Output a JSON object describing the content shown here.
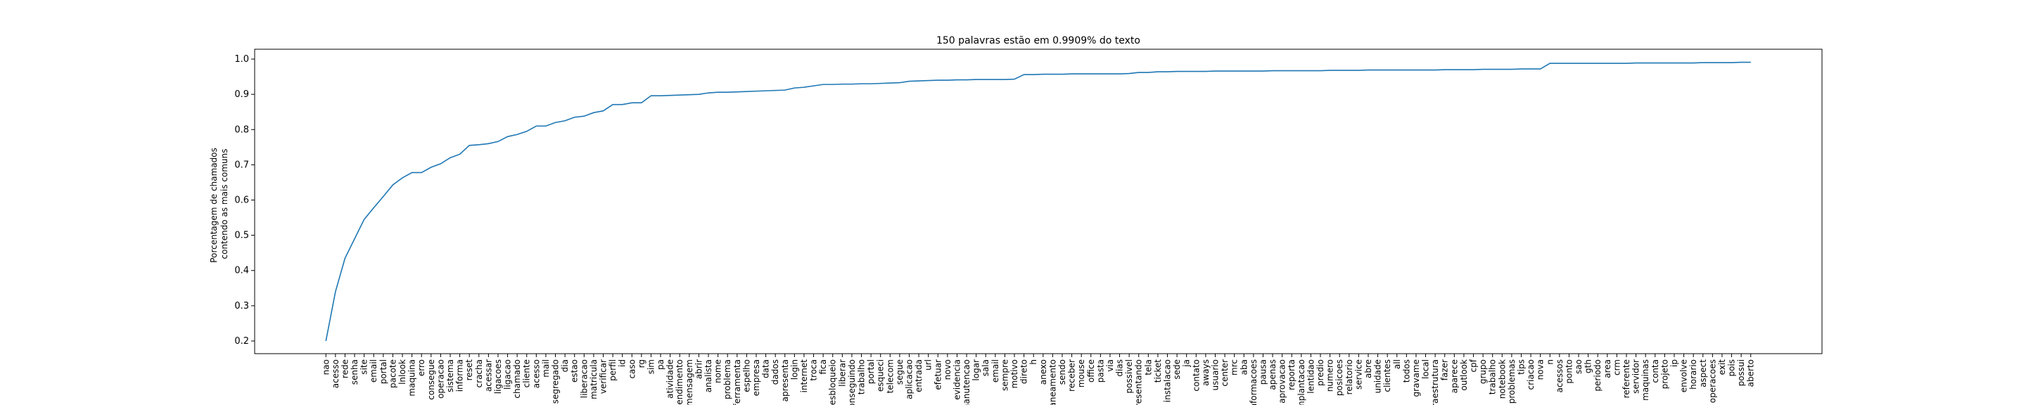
{
  "chart_data": {
    "type": "line",
    "title": "150 palavras estão em 0.9909% do texto",
    "ylabel": [
      "Porcentagem de chamados",
      "contendo as mais comuns"
    ],
    "color": "#1f77b4",
    "categories": [
      "nao",
      "acesso",
      "rede",
      "senha",
      "site",
      "email",
      "portal",
      "pacote",
      "lnlook",
      "maquina",
      "erro",
      "consegue",
      "operacao",
      "sistema",
      "informa",
      "reset",
      "cracha",
      "acessar",
      "ligacoes",
      "ligacao",
      "chamado",
      "cliente",
      "acesso",
      "mail",
      "segregado",
      "dia",
      "estao",
      "liberacao",
      "matricula",
      "verificar",
      "perfil",
      "id",
      "caso",
      "rg",
      "sim",
      "pa",
      "atividade",
      "atendimento",
      "mensagem",
      "abrir",
      "analista",
      "nome",
      "problema",
      "ferramenta",
      "espelho",
      "empresa",
      "data",
      "dados",
      "apresenta",
      "login",
      "internet",
      "troca",
      "fica",
      "desbloqueio",
      "liberar",
      "conseguindo",
      "trabalho",
      "portal",
      "esqueci",
      "telecom",
      "segue",
      "aplicacao",
      "entrada",
      "url",
      "efetuar",
      "novo",
      "evidencia",
      "manutencao",
      "logar",
      "sala",
      "email",
      "sempre",
      "motivo",
      "direto",
      "h",
      "anexo",
      "escaneamento",
      "sendo",
      "receber",
      "mouse",
      "office",
      "pasta",
      "via",
      "dias",
      "possivel",
      "presentando",
      "tela",
      "ticket",
      "instalacao",
      "sede",
      "ja",
      "contato",
      "aways",
      "usuario",
      "center",
      "mrc",
      "aba",
      "informacoes",
      "pausa",
      "apenas",
      "aprovacao",
      "reporta",
      "implantacao",
      "lentidao",
      "predio",
      "numero",
      "posicoes",
      "relatorio",
      "service",
      "abre",
      "unidade",
      "clientes",
      "all",
      "todos",
      "gravame",
      "local",
      "infraestrutura",
      "fazer",
      "aparece",
      "outlook",
      "cpf",
      "grupo",
      "trabalho",
      "notebook",
      "problemas",
      "tips",
      "criacao",
      "nova",
      "n",
      "acessos",
      "ponto",
      "sao",
      "gth",
      "periodo",
      "area",
      "crm",
      "referente",
      "servidor",
      "maquinas",
      "conta",
      "projeto",
      "ip",
      "envolve",
      "horario",
      "aspect",
      "operacoes",
      "exit",
      "pois",
      "possui",
      "aberto"
    ],
    "values": [
      0.2,
      0.34,
      0.435,
      0.49,
      0.545,
      0.578,
      0.61,
      0.643,
      0.663,
      0.678,
      0.678,
      0.693,
      0.703,
      0.72,
      0.73,
      0.755,
      0.757,
      0.76,
      0.766,
      0.78,
      0.786,
      0.795,
      0.81,
      0.81,
      0.82,
      0.825,
      0.835,
      0.838,
      0.848,
      0.853,
      0.871,
      0.871,
      0.876,
      0.876,
      0.896,
      0.896,
      0.897,
      0.898,
      0.899,
      0.9,
      0.904,
      0.906,
      0.906,
      0.907,
      0.908,
      0.909,
      0.91,
      0.911,
      0.912,
      0.918,
      0.92,
      0.924,
      0.928,
      0.928,
      0.929,
      0.929,
      0.93,
      0.93,
      0.931,
      0.932,
      0.933,
      0.937,
      0.938,
      0.939,
      0.94,
      0.94,
      0.941,
      0.941,
      0.942,
      0.942,
      0.942,
      0.942,
      0.943,
      0.956,
      0.956,
      0.957,
      0.957,
      0.957,
      0.958,
      0.958,
      0.958,
      0.958,
      0.958,
      0.958,
      0.959,
      0.962,
      0.962,
      0.964,
      0.964,
      0.965,
      0.965,
      0.965,
      0.965,
      0.966,
      0.966,
      0.966,
      0.966,
      0.966,
      0.966,
      0.967,
      0.967,
      0.967,
      0.967,
      0.967,
      0.967,
      0.968,
      0.968,
      0.968,
      0.968,
      0.969,
      0.969,
      0.969,
      0.969,
      0.969,
      0.969,
      0.969,
      0.969,
      0.97,
      0.97,
      0.97,
      0.97,
      0.971,
      0.971,
      0.971,
      0.971,
      0.972,
      0.972,
      0.972,
      0.988,
      0.988,
      0.988,
      0.988,
      0.988,
      0.988,
      0.988,
      0.988,
      0.988,
      0.989,
      0.989,
      0.989,
      0.989,
      0.989,
      0.989,
      0.989,
      0.99,
      0.99,
      0.99,
      0.99,
      0.991,
      0.991
    ],
    "ylim": [
      0.164,
      1.028
    ],
    "yticks": [
      {
        "value": 0.2,
        "label": "0.2"
      },
      {
        "value": 0.3,
        "label": "0.3"
      },
      {
        "value": 0.4,
        "label": "0.4"
      },
      {
        "value": 0.5,
        "label": "0.5"
      },
      {
        "value": 0.6,
        "label": "0.6"
      },
      {
        "value": 0.7,
        "label": "0.7"
      },
      {
        "value": 0.8,
        "label": "0.8"
      },
      {
        "value": 0.9,
        "label": "0.9"
      },
      {
        "value": 1.0,
        "label": "1.0"
      }
    ],
    "grid": false
  }
}
